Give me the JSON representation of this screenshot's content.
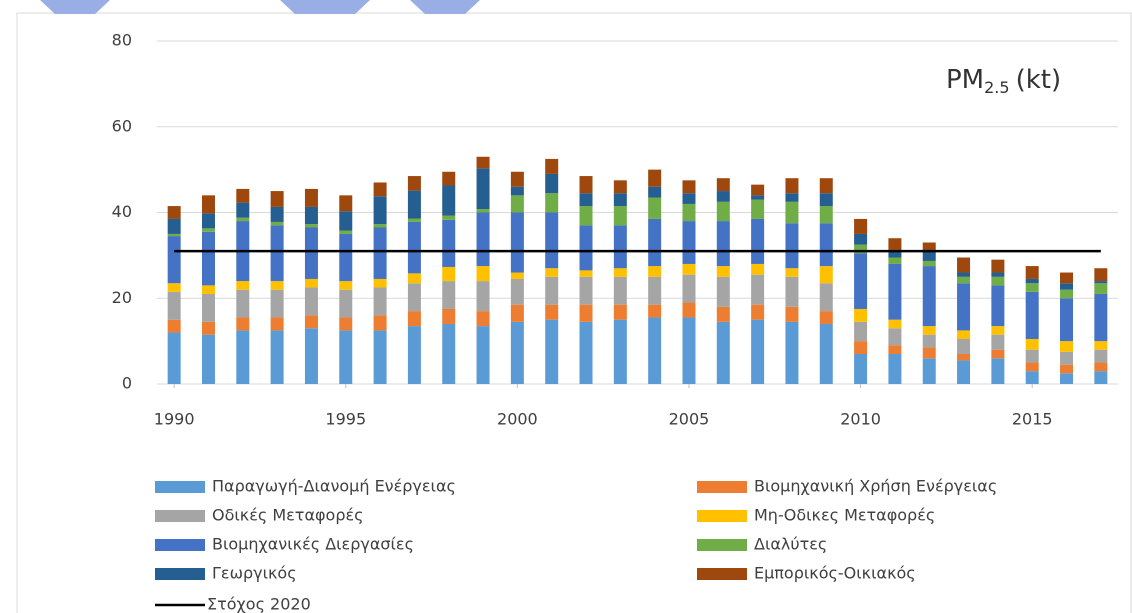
{
  "chart_data": {
    "type": "bar",
    "stacked": true,
    "title": {
      "text": "PM",
      "subscript": "2.5",
      "suffix": "(kt)"
    },
    "x": [
      1990,
      1991,
      1992,
      1993,
      1994,
      1995,
      1996,
      1997,
      1998,
      1999,
      2000,
      2001,
      2002,
      2003,
      2004,
      2005,
      2006,
      2007,
      2008,
      2009,
      2010,
      2011,
      2012,
      2013,
      2014,
      2015,
      2016,
      2017
    ],
    "xlim": [
      1989.5,
      2017.5
    ],
    "xticks": [
      1990,
      1995,
      2000,
      2005,
      2010,
      2015
    ],
    "ylim": [
      0,
      80
    ],
    "yticks": [
      0,
      20,
      40,
      60,
      80
    ],
    "grid": true,
    "series": [
      {
        "name": "Παραγωγή-Διανομή Ενέργειας",
        "color": "#5b9bd5",
        "values": [
          12,
          11.5,
          12.5,
          12.5,
          13,
          12.5,
          12.5,
          13.5,
          14,
          13.5,
          14.5,
          15,
          14.5,
          15,
          15.5,
          15.5,
          14.5,
          15,
          14.5,
          14,
          7,
          7,
          6,
          5.5,
          6,
          3,
          2.5,
          3
        ]
      },
      {
        "name": "Βιομηχανική Χρήση Ενέργειας",
        "color": "#ed7d31",
        "values": [
          3,
          3,
          3,
          3,
          3,
          3,
          3.5,
          3.5,
          3.5,
          3.5,
          4,
          3.5,
          4,
          3.5,
          3,
          3.5,
          3.5,
          3.5,
          3.5,
          3,
          3,
          2,
          2.5,
          1.5,
          2,
          2,
          2,
          2
        ]
      },
      {
        "name": "Οδικές Μεταφορές",
        "color": "#a5a5a5",
        "values": [
          6.5,
          6.5,
          6.5,
          6.5,
          6.5,
          6.5,
          6.5,
          6.5,
          6.5,
          7,
          6,
          6.5,
          6.5,
          6.5,
          6.5,
          6.5,
          7,
          7,
          7,
          6.5,
          4.5,
          4,
          3,
          3.5,
          3.5,
          3,
          3,
          3
        ]
      },
      {
        "name": "Μη-Οδικες Μεταφορές",
        "color": "#ffc000",
        "values": [
          2,
          2,
          2,
          2,
          2,
          2,
          2,
          2.3,
          3.3,
          3.5,
          1.5,
          2,
          1.5,
          2,
          2.5,
          2.5,
          2.5,
          2.5,
          2,
          4,
          3,
          2,
          2,
          2,
          2,
          2.5,
          2.5,
          2
        ]
      },
      {
        "name": "Βιομηχανικές Διεργασίες",
        "color": "#4472c4",
        "values": [
          11,
          12.5,
          14,
          13,
          12,
          11,
          12,
          12,
          11,
          12.5,
          14,
          13,
          10.5,
          10,
          11,
          10,
          10.5,
          10.5,
          10.5,
          10,
          13,
          13,
          14,
          11,
          9.5,
          11,
          10,
          11
        ]
      },
      {
        "name": "Διαλύτες",
        "color": "#70ad47",
        "values": [
          0.5,
          0.8,
          0.8,
          0.8,
          0.8,
          0.8,
          0.8,
          0.8,
          1,
          0.8,
          4,
          4.5,
          4.5,
          4.5,
          5,
          4,
          4.5,
          4.5,
          5,
          4,
          2,
          1.5,
          1.2,
          1.5,
          2,
          2,
          2,
          2.5
        ]
      },
      {
        "name": "Γεωργικός",
        "color": "#255e91",
        "values": [
          3.5,
          3.5,
          3.5,
          3.5,
          4,
          4.5,
          6.5,
          6.5,
          7,
          9.5,
          2,
          4.5,
          3,
          3,
          2.5,
          2.5,
          2.5,
          1,
          2,
          3,
          2.5,
          1.5,
          2.3,
          1,
          1,
          1,
          1.5,
          0.5
        ]
      },
      {
        "name": "Εμπορικός-Οικιακός",
        "color": "#9e480e",
        "values": [
          3,
          4.2,
          3.2,
          3.7,
          4.2,
          3.7,
          3.2,
          3.4,
          3.2,
          2.7,
          3.5,
          3.5,
          4,
          3,
          4,
          3,
          3,
          2.5,
          3.5,
          3.5,
          3.5,
          3,
          2,
          3.5,
          3,
          3,
          2.5,
          3
        ]
      }
    ],
    "target_line": {
      "name": "Στόχος 2020",
      "value": 31,
      "color": "#000000"
    }
  }
}
